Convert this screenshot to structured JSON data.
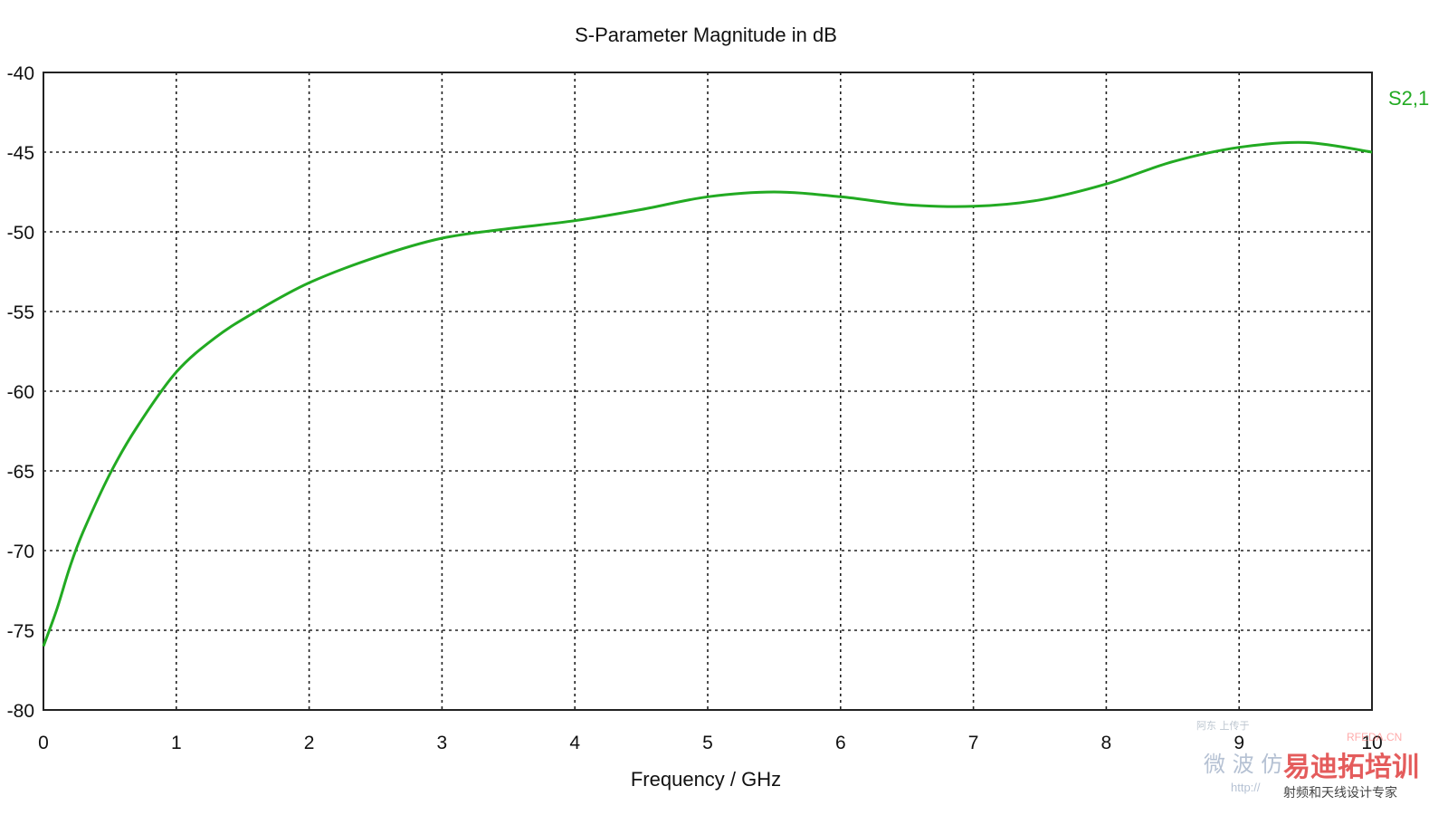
{
  "chart_data": {
    "type": "line",
    "title": "S-Parameter Magnitude in dB",
    "xlabel": "Frequency / GHz",
    "ylabel": "",
    "xlim": [
      0,
      10
    ],
    "ylim": [
      -80,
      -40
    ],
    "xticks": [
      "0",
      "1",
      "2",
      "3",
      "4",
      "5",
      "6",
      "7",
      "8",
      "9",
      "10"
    ],
    "yticks": [
      "-40",
      "-45",
      "-50",
      "-55",
      "-60",
      "-65",
      "-70",
      "-75",
      "-80"
    ],
    "grid": true,
    "grid_style": "dotted",
    "series": [
      {
        "name": "S2,1",
        "color": "#22aa22",
        "x": [
          0,
          0.1,
          0.2,
          0.3,
          0.5,
          0.7,
          1.0,
          1.3,
          1.6,
          2.0,
          2.5,
          3.0,
          3.5,
          4.0,
          4.5,
          5.0,
          5.5,
          6.0,
          6.5,
          7.0,
          7.5,
          8.0,
          8.5,
          9.0,
          9.5,
          10.0
        ],
        "y": [
          -76.0,
          -73.7,
          -71.0,
          -68.8,
          -65.2,
          -62.3,
          -58.8,
          -56.6,
          -55.0,
          -53.2,
          -51.6,
          -50.4,
          -49.8,
          -49.3,
          -48.6,
          -47.8,
          -47.5,
          -47.8,
          -48.3,
          -48.4,
          -48.0,
          -47.0,
          -45.6,
          -44.7,
          -44.4,
          -45.0
        ]
      }
    ]
  },
  "watermark": {
    "top_line": "阿东 上传于",
    "main_cn": "微 波 仿",
    "brand_cn": "易迪拓培训",
    "url": "http://",
    "rfeda": "RFEDA.CN",
    "subtitle_cn": "射频和天线设计专家"
  }
}
